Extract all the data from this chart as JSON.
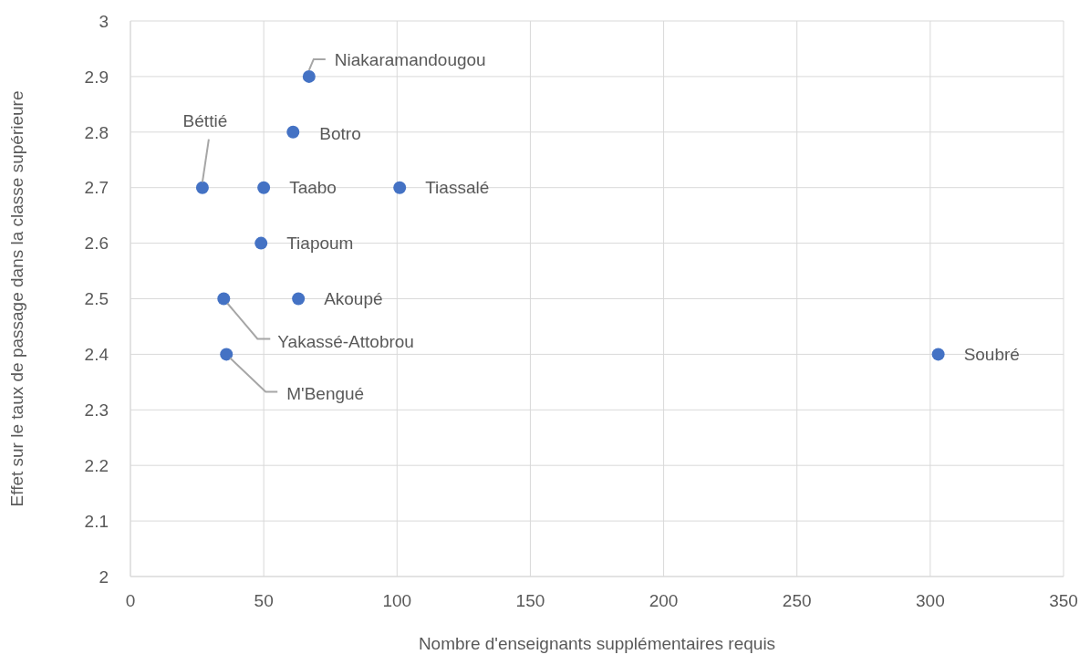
{
  "chart_data": {
    "type": "scatter",
    "xlabel": "Nombre d'enseignants supplémentaires requis",
    "ylabel": "Effet sur le taux de passage dans la classe supérieure",
    "x": [
      67,
      61,
      27,
      50,
      101,
      49,
      63,
      35,
      36,
      303
    ],
    "series": [
      {
        "color": "#4472c4",
        "values": [
          2.9,
          2.8,
          2.7,
          2.7,
          2.7,
          2.6,
          2.5,
          2.5,
          2.4,
          2.4
        ]
      }
    ],
    "annotations": [
      {
        "text": "Niakaramandougou",
        "x": 67,
        "y": 2.9
      },
      {
        "text": "Botro",
        "x": 61,
        "y": 2.8
      },
      {
        "text": "Béttié",
        "x": 27,
        "y": 2.7
      },
      {
        "text": "Taabo",
        "x": 50,
        "y": 2.7
      },
      {
        "text": "Tiassalé",
        "x": 101,
        "y": 2.7
      },
      {
        "text": "Tiapoum",
        "x": 49,
        "y": 2.6
      },
      {
        "text": "Akoupé",
        "x": 63,
        "y": 2.5
      },
      {
        "text": "Yakassé-Attobrou",
        "x": 35,
        "y": 2.5
      },
      {
        "text": "M'Bengué",
        "x": 36,
        "y": 2.4
      },
      {
        "text": "Soubré",
        "x": 303,
        "y": 2.4
      }
    ],
    "xlim": [
      0,
      350
    ],
    "xticks": [
      0,
      50,
      100,
      150,
      200,
      250,
      300,
      350
    ],
    "ylim": [
      2,
      3
    ],
    "yticks": [
      2,
      2.1,
      2.2,
      2.3,
      2.4,
      2.5,
      2.6,
      2.7,
      2.8,
      2.9,
      3
    ],
    "grid": true,
    "marker": "circle",
    "legend": false
  }
}
